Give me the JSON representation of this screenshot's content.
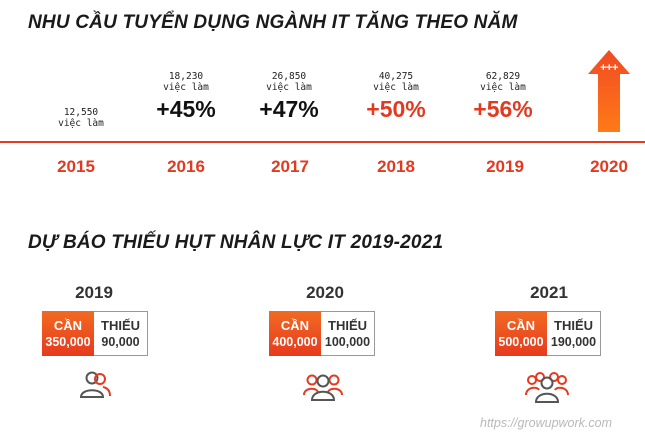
{
  "title_demand": "NHU CẦU TUYỂN DỤNG NGÀNH IT TĂNG THEO NĂM",
  "title_forecast": "DỰ BÁO THIẾU HỤT NHÂN LỰC IT 2019-2021",
  "unit_label": "việc làm",
  "timeline": [
    {
      "year": "2015",
      "count": "12,550",
      "growth": ""
    },
    {
      "year": "2016",
      "count": "18,230",
      "growth": "+45%"
    },
    {
      "year": "2017",
      "count": "26,850",
      "growth": "+47%"
    },
    {
      "year": "2018",
      "count": "40,275",
      "growth": "+50%"
    },
    {
      "year": "2019",
      "count": "62,829",
      "growth": "+56%"
    },
    {
      "year": "2020",
      "count": "",
      "growth": "+++"
    }
  ],
  "forecast": [
    {
      "year": "2019",
      "need_label": "CẦN",
      "need_value": "350,000",
      "lack_label": "THIẾU",
      "lack_value": "90,000"
    },
    {
      "year": "2020",
      "need_label": "CẦN",
      "need_value": "400,000",
      "lack_label": "THIẾU",
      "lack_value": "100,000"
    },
    {
      "year": "2021",
      "need_label": "CẦN",
      "need_value": "500,000",
      "lack_label": "THIẾU",
      "lack_value": "190,000"
    }
  ],
  "source_url": "https://growupwork.com",
  "colors": {
    "accent": "#e63a1f",
    "accent_light": "#f26a22",
    "dark": "#1a1a1a"
  }
}
